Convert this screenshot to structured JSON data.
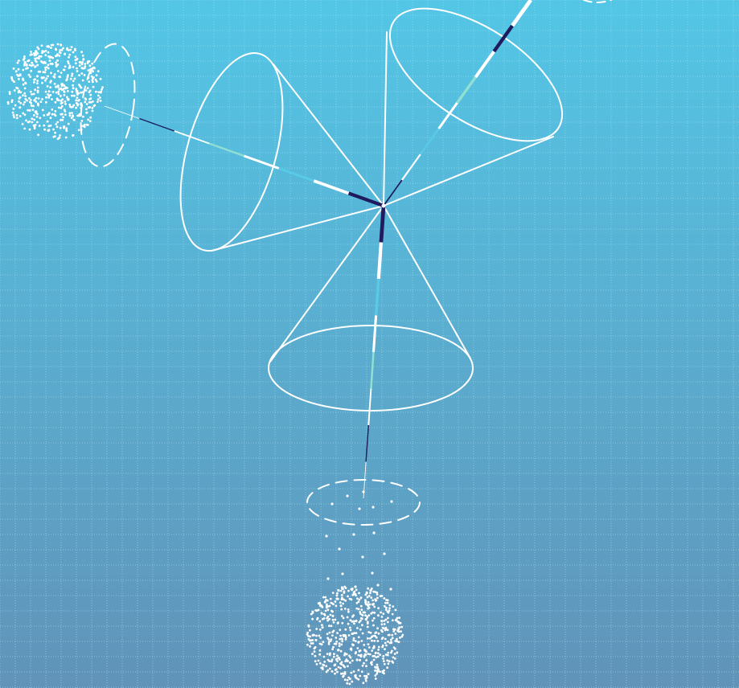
{
  "colors": {
    "background_top": "#53c6e6",
    "background_bottom": "#6193b8",
    "grid": "#a9e4f1",
    "line": "#ffffff",
    "segment_navy": "#1f1b5e",
    "segment_teal": "#8fe0d2",
    "segment_cyan": "#58c9e6"
  },
  "diagram": {
    "grid": true,
    "cone_count": 3,
    "particle_clouds": 3,
    "beam_segment_pattern": [
      "white",
      "navy",
      "white",
      "teal",
      "white",
      "cyan",
      "white",
      "navy"
    ]
  }
}
